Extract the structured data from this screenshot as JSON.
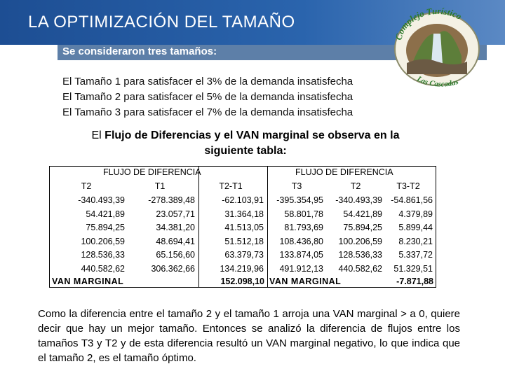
{
  "title": "LA OPTIMIZACIÓN DEL TAMAÑO",
  "subtitle": "Se consideraron tres tamaños:",
  "logo": {
    "text_top": "Complejo Turístico",
    "text_bottom": "Las Cascadas"
  },
  "size_lines": [
    "El Tamaño 1 para satisfacer el 3% de la demanda insatisfecha",
    "El Tamaño 2 para satisfacer el 5% de la demanda insatisfecha",
    "El Tamaño 3 para satisfacer el 7% de la demanda insatisfecha"
  ],
  "lead": {
    "prefix": "El ",
    "bold1": "Flujo de Diferencias  y  el VAN marginal se observa en la",
    "bold2": "siguiente  tabla:"
  },
  "table": {
    "left_header": "FLUJO DE DIFERENCIA",
    "right_header": "FLUJO DE DIFERENCIA",
    "cols": [
      "T2",
      "T1",
      "T2-T1",
      "T3",
      "T2",
      "T3-T2"
    ],
    "rows": [
      [
        "-340.493,39",
        "-278.389,48",
        "-62.103,91",
        "-395.354,95",
        "-340.493,39",
        "-54.861,56"
      ],
      [
        "54.421,89",
        "23.057,71",
        "31.364,18",
        "58.801,78",
        "54.421,89",
        "4.379,89"
      ],
      [
        "75.894,25",
        "34.381,20",
        "41.513,05",
        "81.793,69",
        "75.894,25",
        "5.899,44"
      ],
      [
        "100.206,59",
        "48.694,41",
        "51.512,18",
        "108.436,80",
        "100.206,59",
        "8.230,21"
      ],
      [
        "128.536,33",
        "65.156,60",
        "63.379,73",
        "133.874,05",
        "128.536,33",
        "5.337,72"
      ],
      [
        "440.582,62",
        "306.362,66",
        "134.219,96",
        "491.912,13",
        "440.582,62",
        "51.329,51"
      ]
    ],
    "van_label_left": "VAN MARGINAL",
    "van_value_left": "152.098,10",
    "van_label_right": "VAN MARGINAL",
    "van_value_right": "-7.871,88"
  },
  "conclusion": "Como la diferencia entre el tamaño 2 y el tamaño 1 arroja una VAN marginal > a 0, quiere decir que hay un mejor tamaño. Entonces se analizó la diferencia de flujos entre los tamaños T3 y T2 y de esta diferencia resultó un VAN marginal negativo, lo que indica que el tamaño 2, es el tamaño óptimo."
}
